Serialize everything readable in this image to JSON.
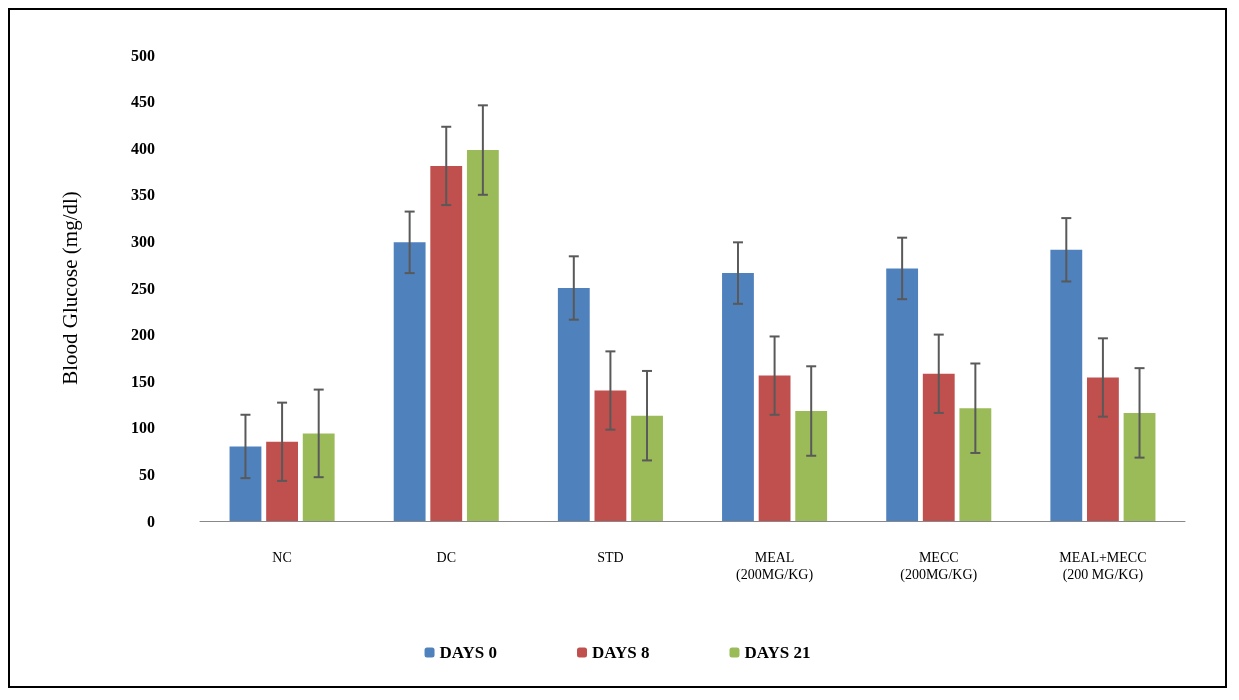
{
  "chart_data": {
    "type": "bar",
    "ylabel": "Blood Glucose (mg/dl)",
    "categories": [
      "NC",
      "DC",
      "STD",
      "MEAL\n(200MG/KG)",
      "MECC\n(200MG/KG)",
      "MEAL+MECC\n(200 MG/KG)"
    ],
    "series": [
      {
        "name": "DAYS 0",
        "color": "#4f81bd",
        "values": [
          80,
          299,
          250,
          266,
          271,
          291
        ],
        "errors": [
          34,
          33,
          34,
          33,
          33,
          34
        ]
      },
      {
        "name": "DAYS 8",
        "color": "#c0504d",
        "values": [
          85,
          381,
          140,
          156,
          158,
          154
        ],
        "errors": [
          42,
          42,
          42,
          42,
          42,
          42
        ]
      },
      {
        "name": "DAYS 21",
        "color": "#9bbb59",
        "values": [
          94,
          398,
          113,
          118,
          121,
          116
        ],
        "errors": [
          47,
          48,
          48,
          48,
          48,
          48
        ]
      }
    ],
    "ylim": [
      0,
      500
    ],
    "yticks": [
      0,
      50,
      100,
      150,
      200,
      250,
      300,
      350,
      400,
      450,
      500
    ],
    "grid": false,
    "legend": "bottom"
  }
}
